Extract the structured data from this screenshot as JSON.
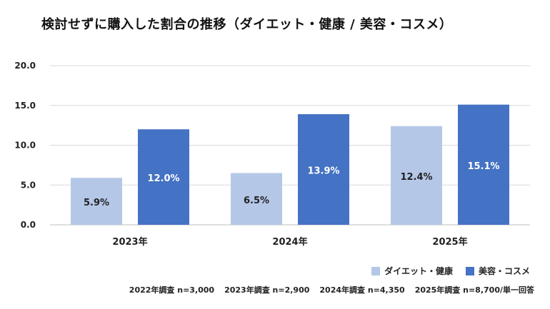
{
  "chart_data": {
    "type": "bar",
    "title": "検討せずに購入した割合の推移（ダイエット・健康 / 美容・コスメ）",
    "categories": [
      "2023年",
      "2024年",
      "2025年"
    ],
    "series": [
      {
        "name": "ダイエット・健康",
        "values": [
          5.9,
          6.5,
          12.4
        ],
        "labels": [
          "5.9%",
          "6.5%",
          "12.4%"
        ],
        "color": "#b4c7e7",
        "label_color": "#222222"
      },
      {
        "name": "美容・コスメ",
        "values": [
          12.0,
          13.9,
          15.1
        ],
        "labels": [
          "12.0%",
          "13.9%",
          "15.1%"
        ],
        "color": "#4472c4",
        "label_color": "#ffffff"
      }
    ],
    "yticks": [
      "0.0",
      "5.0",
      "10.0",
      "15.0",
      "20.0"
    ],
    "ylim": [
      0,
      20
    ],
    "grid": true,
    "legend": "bottom-right",
    "footnotes": [
      "2022年調査 n=3,000",
      "2023年調査 n=2,900",
      "2024年調査 n=4,350",
      "2025年調査 n=8,700/単一回答"
    ]
  }
}
